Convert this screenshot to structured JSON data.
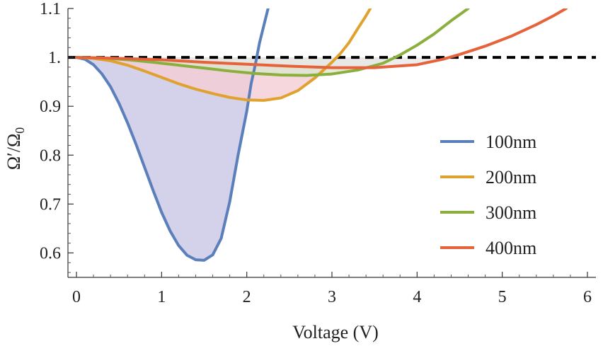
{
  "chart_data": {
    "type": "line",
    "xlabel": "Voltage (V)",
    "ylabel_main": "Ω′/Ω",
    "ylabel_sub": "0",
    "xlim": [
      -0.1,
      6.1
    ],
    "ylim": [
      0.55,
      1.1
    ],
    "x_ticks": [
      0,
      1,
      2,
      3,
      4,
      5,
      6
    ],
    "x_tick_labels": [
      "0",
      "1",
      "2",
      "3",
      "4",
      "5",
      "6"
    ],
    "y_ticks": [
      0.6,
      0.7,
      0.8,
      0.9,
      1.0,
      1.1
    ],
    "y_tick_labels": [
      "0.6",
      "0.7",
      "0.8",
      "0.9",
      "1.",
      "1.1"
    ],
    "grid": false,
    "legend_position": "right",
    "reference_line": {
      "y": 1.0,
      "style": "dashed",
      "color": "#000000"
    },
    "series": [
      {
        "name": "100nm",
        "color": "#5b7fba",
        "fill": "#c9c6e6",
        "points": [
          [
            0,
            1.0
          ],
          [
            0.1,
            0.996
          ],
          [
            0.2,
            0.985
          ],
          [
            0.3,
            0.966
          ],
          [
            0.4,
            0.94
          ],
          [
            0.5,
            0.906
          ],
          [
            0.6,
            0.866
          ],
          [
            0.7,
            0.822
          ],
          [
            0.8,
            0.775
          ],
          [
            0.9,
            0.728
          ],
          [
            1.0,
            0.683
          ],
          [
            1.1,
            0.645
          ],
          [
            1.2,
            0.615
          ],
          [
            1.3,
            0.595
          ],
          [
            1.4,
            0.586
          ],
          [
            1.5,
            0.585
          ],
          [
            1.6,
            0.596
          ],
          [
            1.7,
            0.63
          ],
          [
            1.8,
            0.705
          ],
          [
            1.9,
            0.802
          ],
          [
            2.0,
            0.89
          ],
          [
            2.05,
            0.945
          ],
          [
            2.1,
            0.985
          ],
          [
            2.15,
            1.03
          ],
          [
            2.2,
            1.065
          ],
          [
            2.25,
            1.1
          ]
        ]
      },
      {
        "name": "200nm",
        "color": "#e0a22f",
        "fill": "#f2cdd4",
        "points": [
          [
            0,
            1.0
          ],
          [
            0.2,
            0.998
          ],
          [
            0.4,
            0.993
          ],
          [
            0.6,
            0.984
          ],
          [
            0.8,
            0.972
          ],
          [
            1.0,
            0.959
          ],
          [
            1.2,
            0.946
          ],
          [
            1.4,
            0.935
          ],
          [
            1.6,
            0.926
          ],
          [
            1.8,
            0.918
          ],
          [
            2.0,
            0.913
          ],
          [
            2.2,
            0.912
          ],
          [
            2.4,
            0.917
          ],
          [
            2.6,
            0.932
          ],
          [
            2.8,
            0.958
          ],
          [
            3.0,
            0.99
          ],
          [
            3.1,
            1.008
          ],
          [
            3.2,
            1.03
          ],
          [
            3.3,
            1.058
          ],
          [
            3.4,
            1.085
          ],
          [
            3.45,
            1.1
          ]
        ]
      },
      {
        "name": "300nm",
        "color": "#8aaf3c",
        "fill": "#dde6cf",
        "points": [
          [
            0,
            1.0
          ],
          [
            0.3,
            0.999
          ],
          [
            0.6,
            0.995
          ],
          [
            0.9,
            0.99
          ],
          [
            1.2,
            0.984
          ],
          [
            1.5,
            0.978
          ],
          [
            1.8,
            0.972
          ],
          [
            2.1,
            0.967
          ],
          [
            2.4,
            0.964
          ],
          [
            2.7,
            0.963
          ],
          [
            3.0,
            0.966
          ],
          [
            3.3,
            0.974
          ],
          [
            3.6,
            0.988
          ],
          [
            3.8,
            1.005
          ],
          [
            4.0,
            1.025
          ],
          [
            4.2,
            1.048
          ],
          [
            4.4,
            1.075
          ],
          [
            4.6,
            1.1
          ]
        ]
      },
      {
        "name": "400nm",
        "color": "#e5623b",
        "fill": "#e8e8e8",
        "points": [
          [
            0,
            1.0
          ],
          [
            0.5,
            0.998
          ],
          [
            1.0,
            0.995
          ],
          [
            1.5,
            0.99
          ],
          [
            2.0,
            0.986
          ],
          [
            2.5,
            0.982
          ],
          [
            3.0,
            0.979
          ],
          [
            3.5,
            0.979
          ],
          [
            4.0,
            0.985
          ],
          [
            4.3,
            0.996
          ],
          [
            4.5,
            1.006
          ],
          [
            4.8,
            1.023
          ],
          [
            5.1,
            1.043
          ],
          [
            5.4,
            1.067
          ],
          [
            5.6,
            1.085
          ],
          [
            5.75,
            1.1
          ]
        ]
      }
    ]
  }
}
